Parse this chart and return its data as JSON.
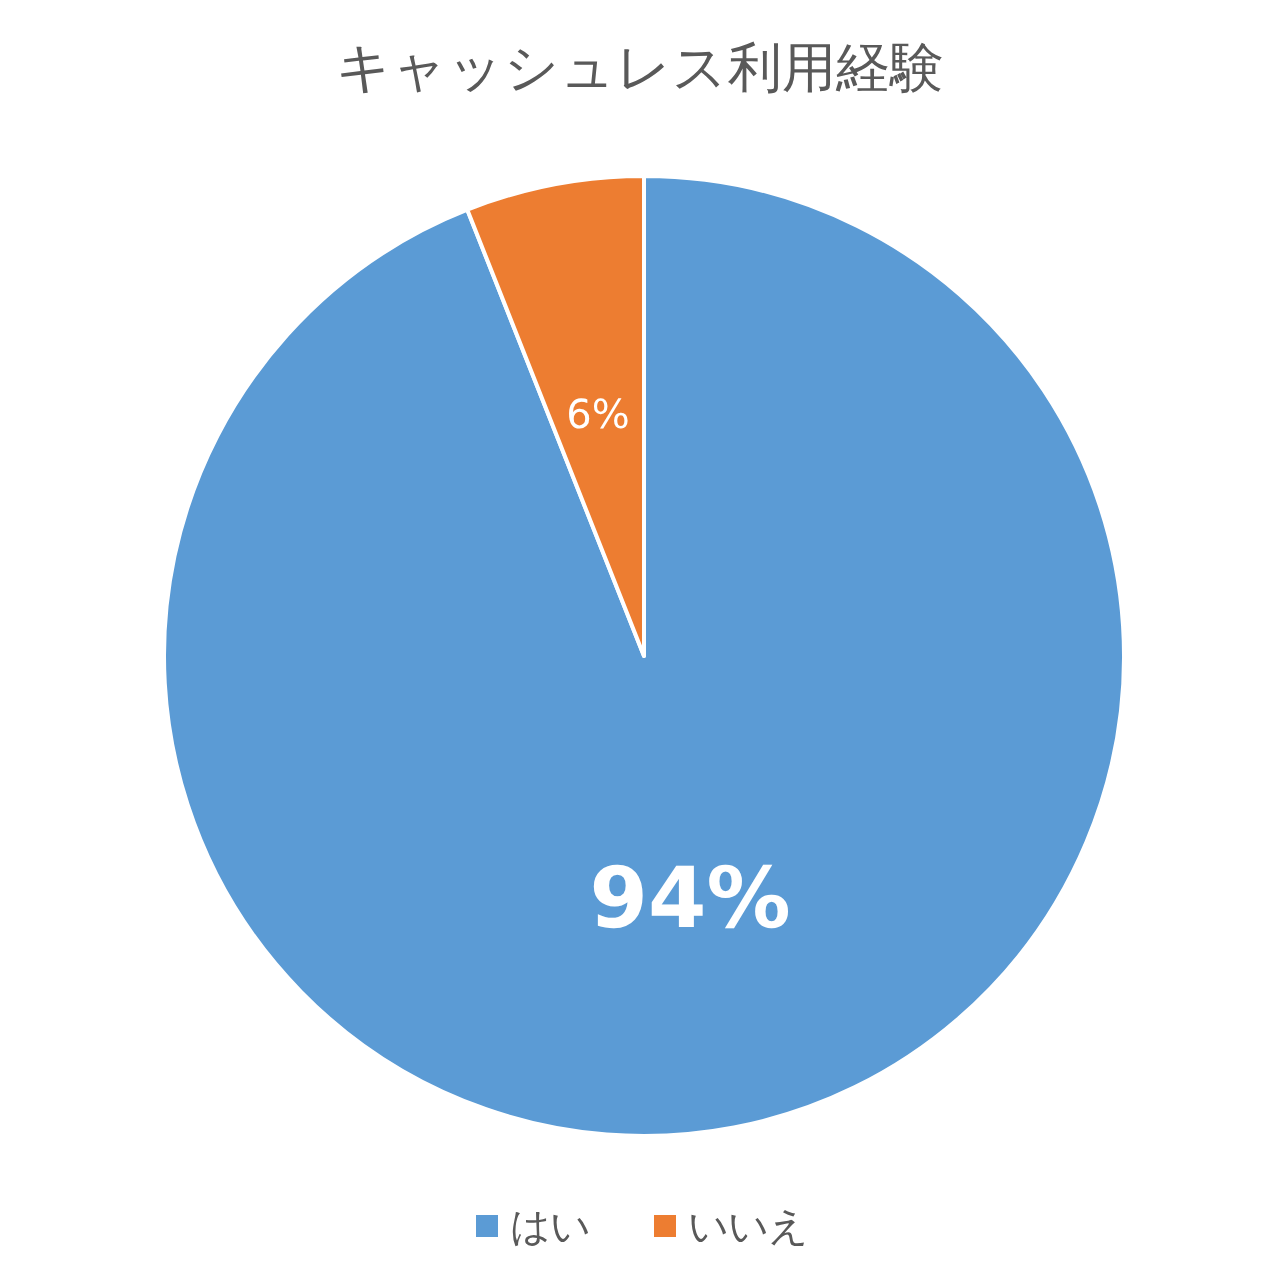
{
  "chart_data": {
    "type": "pie",
    "title": "キャッシュレス利用経験",
    "categories": [
      "はい",
      "いいえ"
    ],
    "values": [
      94,
      6
    ],
    "colors": [
      "#5b9bd5",
      "#ed7d31"
    ],
    "value_labels": [
      "94%",
      "6%"
    ],
    "legend": "bottom"
  }
}
